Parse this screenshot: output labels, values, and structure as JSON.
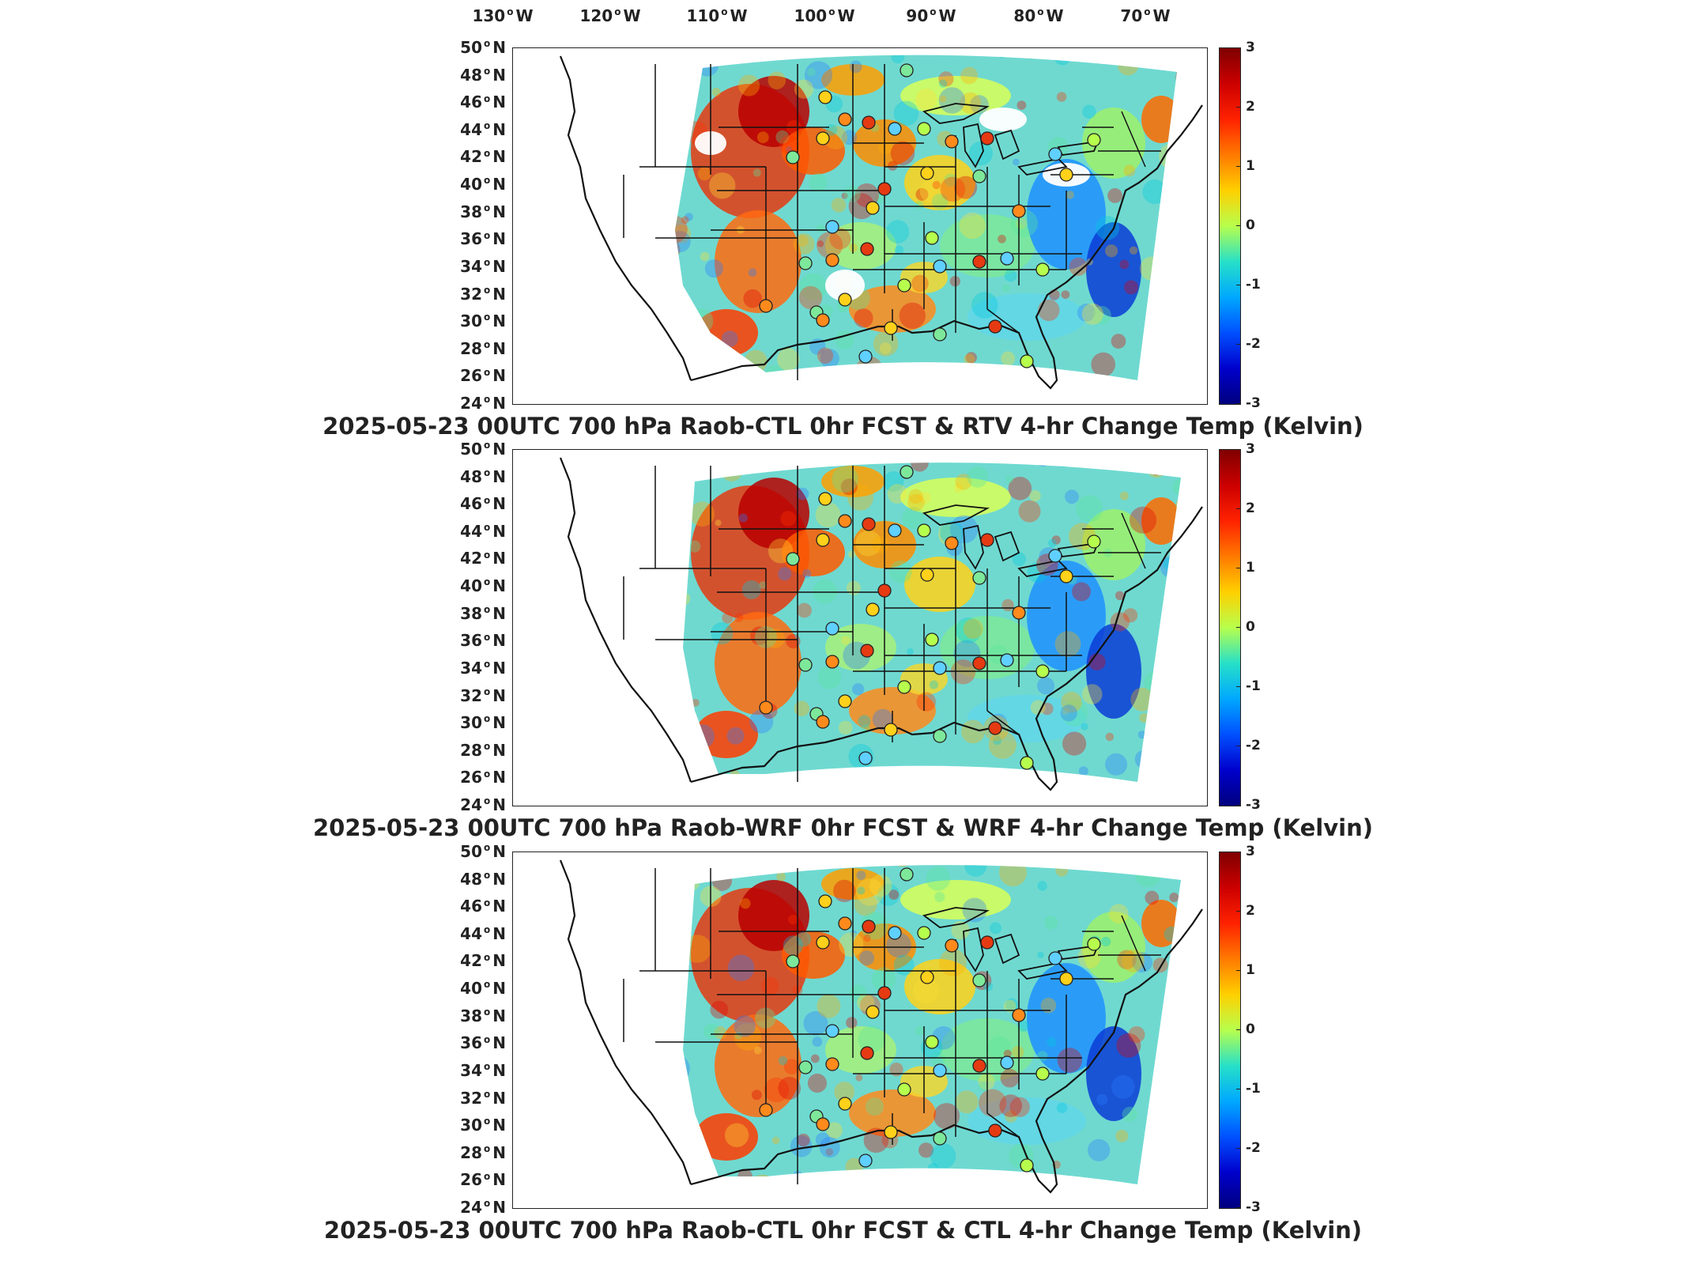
{
  "lon_ticks": [
    "130",
    "120",
    "110",
    "100",
    "90",
    "80",
    "70"
  ],
  "lon_suffix": "W",
  "lat_ticks": [
    "50",
    "48",
    "46",
    "44",
    "42",
    "40",
    "38",
    "36",
    "34",
    "32",
    "30",
    "28",
    "26",
    "24"
  ],
  "lat_suffix": "N",
  "degree_symbol": "o",
  "colorbar": {
    "ticks": [
      "3",
      "2",
      "1",
      "0",
      "-1",
      "-2",
      "-3"
    ],
    "range": [
      -3,
      3
    ],
    "colors": [
      "#7f0000",
      "#ff2200",
      "#ffd000",
      "#b7ff4d",
      "#00a8ff",
      "#0000cc",
      "#00007f"
    ]
  },
  "panels": [
    {
      "title": "2025-05-23 00UTC 700 hPa Raob-CTL 0hr FCST & RTV 4-hr Change Temp (Kelvin)"
    },
    {
      "title": "2025-05-23 00UTC 700 hPa Raob-WRF 0hr FCST & WRF 4-hr Change Temp (Kelvin)"
    },
    {
      "title": "2025-05-23 00UTC 700 hPa Raob-CTL 0hr FCST & CTL 4-hr Change Temp (Kelvin)"
    }
  ]
}
